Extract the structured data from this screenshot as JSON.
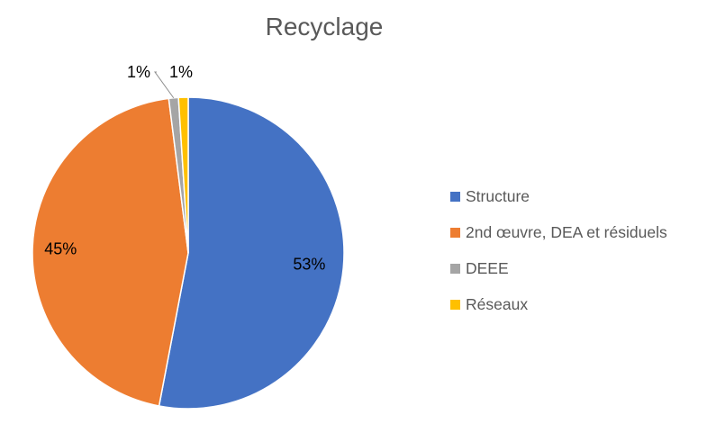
{
  "chart_data": {
    "type": "pie",
    "title": "Recyclage",
    "categories": [
      "Structure",
      "2nd œuvre, DEA et résiduels",
      "DEEE",
      "Réseaux"
    ],
    "values": [
      53,
      45,
      1,
      1
    ],
    "data_labels": [
      "53%",
      "45%",
      "1%",
      "1%"
    ],
    "colors": [
      "#4472C4",
      "#ED7D31",
      "#A5A5A5",
      "#FFC000"
    ],
    "legend_position": "right"
  }
}
